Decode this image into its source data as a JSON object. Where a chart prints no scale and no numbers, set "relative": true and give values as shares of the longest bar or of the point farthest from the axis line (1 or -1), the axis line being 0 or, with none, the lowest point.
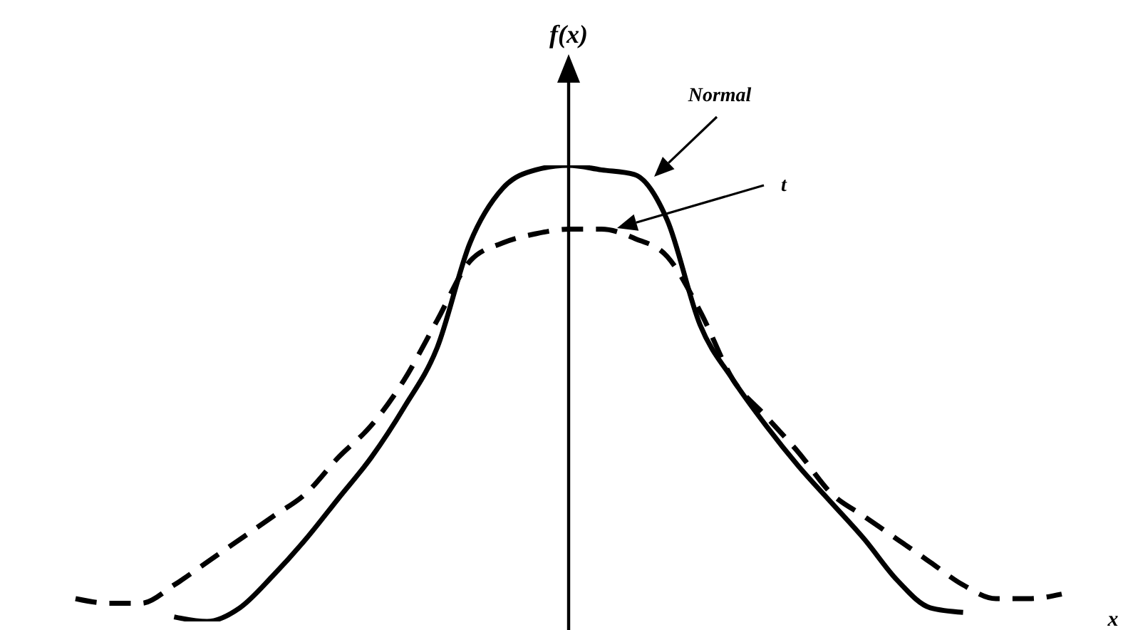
{
  "chart_data": {
    "type": "line",
    "relative": true,
    "ylabel": "f(x)",
    "xlabel": "x",
    "categories": [
      null,
      null,
      null,
      null,
      null,
      null,
      null,
      null,
      null,
      null,
      null,
      null,
      null,
      null,
      null,
      null,
      null,
      null,
      null,
      null,
      null,
      null,
      null,
      null,
      null,
      null,
      null,
      null,
      null,
      null,
      null
    ],
    "series": [
      {
        "name": "Normal",
        "color": "#000000",
        "line_style": "solid",
        "values": [
          null,
          null,
          null,
          0.01,
          0,
          0.03,
          0.1,
          0.18,
          0.27,
          0.36,
          0.47,
          0.6,
          0.83,
          0.95,
          0.99,
          1,
          0.99,
          0.98,
          0.88,
          0.65,
          0.53,
          0.43,
          0.34,
          0.26,
          0.18,
          0.09,
          0.03,
          0.02,
          null,
          null,
          null
        ]
      },
      {
        "name": "t",
        "color": "#000000",
        "line_style": "dashed",
        "values": [
          0.05,
          0.04,
          0.04,
          0.08,
          0.13,
          0.18,
          0.23,
          0.28,
          0.36,
          0.43,
          0.53,
          0.66,
          0.79,
          0.83,
          0.85,
          0.86,
          0.86,
          0.84,
          0.8,
          0.68,
          0.53,
          0.45,
          0.37,
          0.28,
          0.23,
          0.18,
          0.13,
          0.08,
          0.05,
          0.05,
          0.06
        ]
      }
    ]
  }
}
